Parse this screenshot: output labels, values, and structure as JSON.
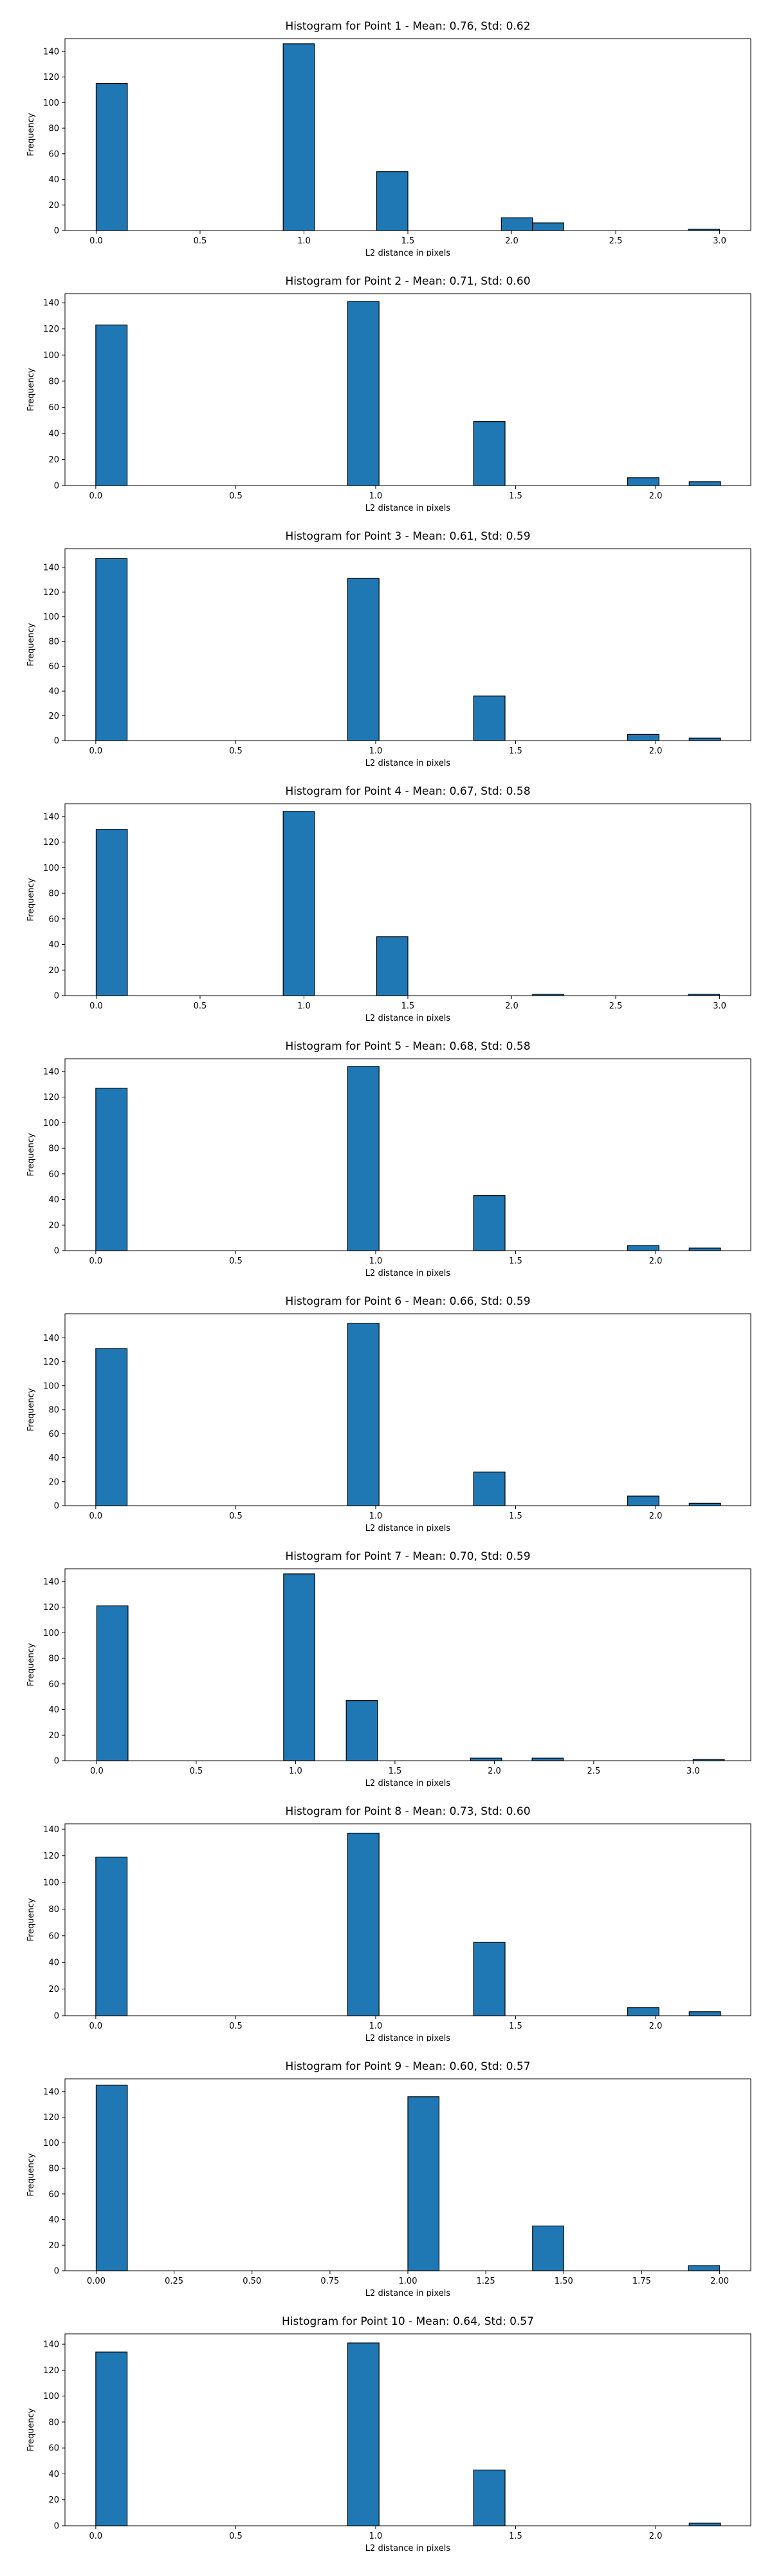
{
  "chart_data": [
    {
      "type": "bar",
      "title": "Histogram for Point 1 - Mean: 0.76, Std: 0.62",
      "xlabel": "L2 distance in pixels",
      "ylabel": "Frequency",
      "xlim": [
        -0.15,
        3.15
      ],
      "ylim": [
        0,
        150
      ],
      "bin_width": 0.15,
      "x_ticks": [
        "0.0",
        "0.5",
        "1.0",
        "1.5",
        "2.0",
        "2.5",
        "3.0"
      ],
      "y_ticks": [
        "0",
        "20",
        "40",
        "60",
        "80",
        "100",
        "120",
        "140"
      ],
      "bins": [
        {
          "x0": 0.0,
          "x1": 0.15,
          "value": 115
        },
        {
          "x0": 0.9,
          "x1": 1.05,
          "value": 146
        },
        {
          "x0": 1.35,
          "x1": 1.5,
          "value": 46
        },
        {
          "x0": 1.95,
          "x1": 2.1,
          "value": 10
        },
        {
          "x0": 2.1,
          "x1": 2.25,
          "value": 6
        },
        {
          "x0": 2.85,
          "x1": 3.0,
          "value": 1
        }
      ]
    },
    {
      "type": "bar",
      "title": "Histogram for Point 2 - Mean: 0.71, Std: 0.60",
      "xlabel": "L2 distance in pixels",
      "ylabel": "Frequency",
      "xlim": [
        -0.11,
        2.34
      ],
      "ylim": [
        0,
        147
      ],
      "bin_width": 0.112,
      "x_ticks": [
        "0.0",
        "0.5",
        "1.0",
        "1.5",
        "2.0"
      ],
      "y_ticks": [
        "0",
        "20",
        "40",
        "60",
        "80",
        "100",
        "120",
        "140"
      ],
      "bins": [
        {
          "x0": 0.0,
          "x1": 0.112,
          "value": 123
        },
        {
          "x0": 0.9,
          "x1": 1.012,
          "value": 141
        },
        {
          "x0": 1.35,
          "x1": 1.462,
          "value": 49
        },
        {
          "x0": 1.9,
          "x1": 2.012,
          "value": 6
        },
        {
          "x0": 2.12,
          "x1": 2.232,
          "value": 3
        }
      ]
    },
    {
      "type": "bar",
      "title": "Histogram for Point 3 - Mean: 0.61, Std: 0.59",
      "xlabel": "L2 distance in pixels",
      "ylabel": "Frequency",
      "xlim": [
        -0.11,
        2.34
      ],
      "ylim": [
        0,
        155
      ],
      "bin_width": 0.112,
      "x_ticks": [
        "0.0",
        "0.5",
        "1.0",
        "1.5",
        "2.0"
      ],
      "y_ticks": [
        "0",
        "20",
        "40",
        "60",
        "80",
        "100",
        "120",
        "140"
      ],
      "bins": [
        {
          "x0": 0.0,
          "x1": 0.112,
          "value": 147
        },
        {
          "x0": 0.9,
          "x1": 1.012,
          "value": 131
        },
        {
          "x0": 1.35,
          "x1": 1.462,
          "value": 36
        },
        {
          "x0": 1.9,
          "x1": 2.012,
          "value": 5
        },
        {
          "x0": 2.12,
          "x1": 2.232,
          "value": 2
        }
      ]
    },
    {
      "type": "bar",
      "title": "Histogram for Point 4 - Mean: 0.67, Std: 0.58",
      "xlabel": "L2 distance in pixels",
      "ylabel": "Frequency",
      "xlim": [
        -0.15,
        3.15
      ],
      "ylim": [
        0,
        150
      ],
      "bin_width": 0.15,
      "x_ticks": [
        "0.0",
        "0.5",
        "1.0",
        "1.5",
        "2.0",
        "2.5",
        "3.0"
      ],
      "y_ticks": [
        "0",
        "20",
        "40",
        "60",
        "80",
        "100",
        "120",
        "140"
      ],
      "bins": [
        {
          "x0": 0.0,
          "x1": 0.15,
          "value": 130
        },
        {
          "x0": 0.9,
          "x1": 1.05,
          "value": 144
        },
        {
          "x0": 1.35,
          "x1": 1.5,
          "value": 46
        },
        {
          "x0": 2.1,
          "x1": 2.25,
          "value": 1
        },
        {
          "x0": 2.85,
          "x1": 3.0,
          "value": 1
        }
      ]
    },
    {
      "type": "bar",
      "title": "Histogram for Point 5 - Mean: 0.68, Std: 0.58",
      "xlabel": "L2 distance in pixels",
      "ylabel": "Frequency",
      "xlim": [
        -0.11,
        2.34
      ],
      "ylim": [
        0,
        150
      ],
      "bin_width": 0.112,
      "x_ticks": [
        "0.0",
        "0.5",
        "1.0",
        "1.5",
        "2.0"
      ],
      "y_ticks": [
        "0",
        "20",
        "40",
        "60",
        "80",
        "100",
        "120",
        "140"
      ],
      "bins": [
        {
          "x0": 0.0,
          "x1": 0.112,
          "value": 127
        },
        {
          "x0": 0.9,
          "x1": 1.012,
          "value": 144
        },
        {
          "x0": 1.35,
          "x1": 1.462,
          "value": 43
        },
        {
          "x0": 1.9,
          "x1": 2.012,
          "value": 4
        },
        {
          "x0": 2.12,
          "x1": 2.232,
          "value": 2
        }
      ]
    },
    {
      "type": "bar",
      "title": "Histogram for Point 6 - Mean: 0.66, Std: 0.59",
      "xlabel": "L2 distance in pixels",
      "ylabel": "Frequency",
      "xlim": [
        -0.11,
        2.34
      ],
      "ylim": [
        0,
        160
      ],
      "bin_width": 0.112,
      "x_ticks": [
        "0.0",
        "0.5",
        "1.0",
        "1.5",
        "2.0"
      ],
      "y_ticks": [
        "0",
        "20",
        "40",
        "60",
        "80",
        "100",
        "120",
        "140"
      ],
      "bins": [
        {
          "x0": 0.0,
          "x1": 0.112,
          "value": 131
        },
        {
          "x0": 0.9,
          "x1": 1.012,
          "value": 152
        },
        {
          "x0": 1.35,
          "x1": 1.462,
          "value": 28
        },
        {
          "x0": 1.9,
          "x1": 2.012,
          "value": 8
        },
        {
          "x0": 2.12,
          "x1": 2.232,
          "value": 2
        }
      ]
    },
    {
      "type": "bar",
      "title": "Histogram for Point 7 - Mean: 0.70, Std: 0.59",
      "xlabel": "L2 distance in pixels",
      "ylabel": "Frequency",
      "xlim": [
        -0.16,
        3.29
      ],
      "ylim": [
        0,
        150
      ],
      "bin_width": 0.157,
      "x_ticks": [
        "0.0",
        "0.5",
        "1.0",
        "1.5",
        "2.0",
        "2.5",
        "3.0"
      ],
      "y_ticks": [
        "0",
        "20",
        "40",
        "60",
        "80",
        "100",
        "120",
        "140"
      ],
      "bins": [
        {
          "x0": 0.0,
          "x1": 0.157,
          "value": 121
        },
        {
          "x0": 0.94,
          "x1": 1.097,
          "value": 146
        },
        {
          "x0": 1.255,
          "x1": 1.412,
          "value": 47
        },
        {
          "x0": 1.88,
          "x1": 2.037,
          "value": 2
        },
        {
          "x0": 2.19,
          "x1": 2.347,
          "value": 2
        },
        {
          "x0": 3.0,
          "x1": 3.157,
          "value": 1
        }
      ]
    },
    {
      "type": "bar",
      "title": "Histogram for Point 8 - Mean: 0.73, Std: 0.60",
      "xlabel": "L2 distance in pixels",
      "ylabel": "Frequency",
      "xlim": [
        -0.11,
        2.34
      ],
      "ylim": [
        0,
        144
      ],
      "bin_width": 0.112,
      "x_ticks": [
        "0.0",
        "0.5",
        "1.0",
        "1.5",
        "2.0"
      ],
      "y_ticks": [
        "0",
        "20",
        "40",
        "60",
        "80",
        "100",
        "120",
        "140"
      ],
      "bins": [
        {
          "x0": 0.0,
          "x1": 0.112,
          "value": 119
        },
        {
          "x0": 0.9,
          "x1": 1.012,
          "value": 137
        },
        {
          "x0": 1.35,
          "x1": 1.462,
          "value": 55
        },
        {
          "x0": 1.9,
          "x1": 2.012,
          "value": 6
        },
        {
          "x0": 2.12,
          "x1": 2.232,
          "value": 3
        }
      ]
    },
    {
      "type": "bar",
      "title": "Histogram for Point 9 - Mean: 0.60, Std: 0.57",
      "xlabel": "L2 distance in pixels",
      "ylabel": "Frequency",
      "xlim": [
        -0.1,
        2.1
      ],
      "ylim": [
        0,
        150
      ],
      "bin_width": 0.1,
      "x_ticks": [
        "0.00",
        "0.25",
        "0.50",
        "0.75",
        "1.00",
        "1.25",
        "1.50",
        "1.75",
        "2.00"
      ],
      "y_ticks": [
        "0",
        "20",
        "40",
        "60",
        "80",
        "100",
        "120",
        "140"
      ],
      "bins": [
        {
          "x0": 0.0,
          "x1": 0.1,
          "value": 145
        },
        {
          "x0": 1.0,
          "x1": 1.1,
          "value": 136
        },
        {
          "x0": 1.4,
          "x1": 1.5,
          "value": 35
        },
        {
          "x0": 1.9,
          "x1": 2.0,
          "value": 4
        }
      ]
    },
    {
      "type": "bar",
      "title": "Histogram for Point 10 - Mean: 0.64, Std: 0.57",
      "xlabel": "L2 distance in pixels",
      "ylabel": "Frequency",
      "xlim": [
        -0.11,
        2.34
      ],
      "ylim": [
        0,
        148
      ],
      "bin_width": 0.112,
      "x_ticks": [
        "0.0",
        "0.5",
        "1.0",
        "1.5",
        "2.0"
      ],
      "y_ticks": [
        "0",
        "20",
        "40",
        "60",
        "80",
        "100",
        "120",
        "140"
      ],
      "bins": [
        {
          "x0": 0.0,
          "x1": 0.112,
          "value": 134
        },
        {
          "x0": 0.9,
          "x1": 1.012,
          "value": 141
        },
        {
          "x0": 1.35,
          "x1": 1.462,
          "value": 43
        },
        {
          "x0": 2.12,
          "x1": 2.232,
          "value": 2
        }
      ]
    }
  ],
  "colors": {
    "bar_fill": "#1f77b4",
    "bar_edge": "#000000",
    "axis": "#000000",
    "text": "#000000",
    "background": "#ffffff"
  }
}
